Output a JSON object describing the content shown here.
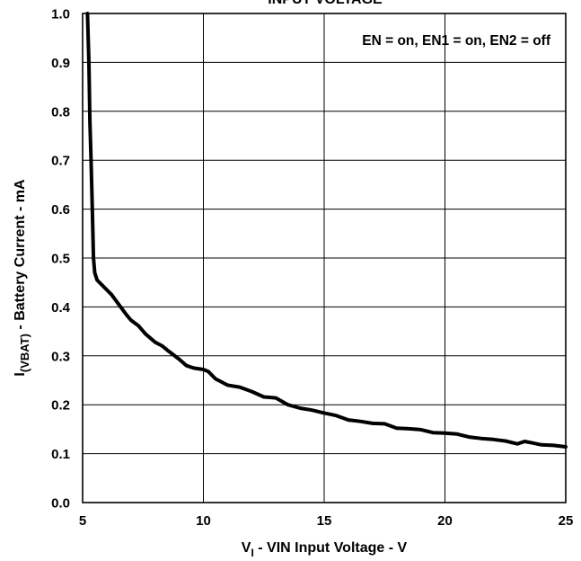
{
  "chart_data": {
    "type": "line",
    "title": "INPUT VOLTAGE",
    "xlabel_main": "V",
    "xlabel_sub": "I",
    "xlabel_rest": " - VIN Input Voltage - V",
    "ylabel_main": "I",
    "ylabel_sub": "(VBAT)",
    "ylabel_rest": " - Battery Current - mA",
    "annotation": "EN = on, EN1 = on, EN2 = off",
    "xlim": [
      5,
      25
    ],
    "ylim": [
      0,
      1.0
    ],
    "x_ticks": [
      5,
      10,
      15,
      20,
      25
    ],
    "x_tick_labels": [
      "5",
      "10",
      "15",
      "20",
      "25"
    ],
    "y_ticks": [
      0.0,
      0.1,
      0.2,
      0.3,
      0.4,
      0.5,
      0.6,
      0.7,
      0.8,
      0.9,
      1.0
    ],
    "y_tick_labels": [
      "0.0",
      "0.1",
      "0.2",
      "0.3",
      "0.4",
      "0.5",
      "0.6",
      "0.7",
      "0.8",
      "0.9",
      "1.0"
    ],
    "grid": true,
    "series": [
      {
        "x": [
          5.2,
          5.22,
          5.26,
          5.3,
          5.35,
          5.4,
          5.45,
          5.5,
          5.6,
          5.8,
          6.0,
          6.2,
          6.5,
          6.8,
          7.0,
          7.3,
          7.6,
          8.0,
          8.3,
          8.6,
          9.0,
          9.3,
          9.6,
          10.0,
          10.2,
          10.5,
          11.0,
          11.5,
          12.0,
          12.5,
          13.0,
          13.5,
          14.0,
          14.5,
          15.0,
          15.5,
          16.0,
          16.5,
          17.0,
          17.5,
          18.0,
          18.5,
          19.0,
          19.5,
          20.0,
          20.5,
          21.0,
          21.5,
          22.0,
          22.5,
          23.0,
          23.3,
          23.6,
          24.0,
          24.5,
          25.0
        ],
        "y": [
          1.0,
          0.97,
          0.9,
          0.78,
          0.7,
          0.6,
          0.5,
          0.47,
          0.455,
          0.445,
          0.435,
          0.425,
          0.405,
          0.385,
          0.373,
          0.362,
          0.345,
          0.328,
          0.32,
          0.308,
          0.293,
          0.28,
          0.275,
          0.272,
          0.268,
          0.253,
          0.24,
          0.236,
          0.227,
          0.216,
          0.214,
          0.2,
          0.193,
          0.189,
          0.183,
          0.178,
          0.169,
          0.166,
          0.162,
          0.161,
          0.152,
          0.151,
          0.149,
          0.143,
          0.142,
          0.14,
          0.134,
          0.131,
          0.129,
          0.126,
          0.12,
          0.125,
          0.122,
          0.118,
          0.117,
          0.114
        ]
      }
    ]
  }
}
